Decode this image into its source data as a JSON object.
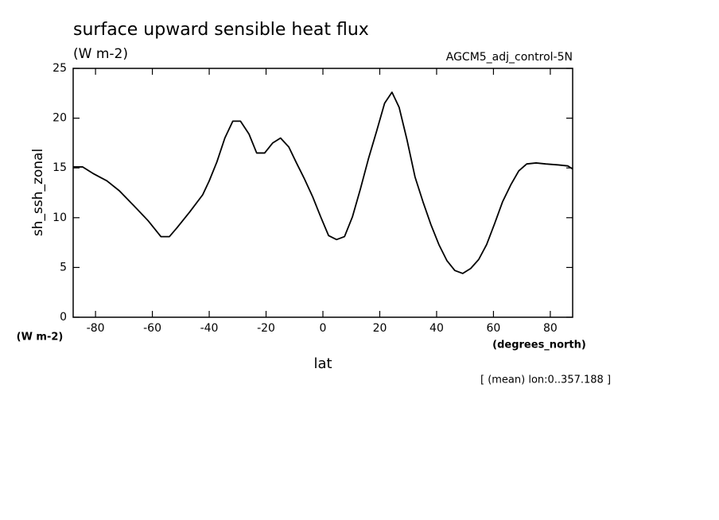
{
  "chart_data": {
    "type": "line",
    "title": "surface upward sensible heat flux",
    "subtitle": "(W m-2)",
    "run_label": "AGCM5_adj_control-5N",
    "ylabel": "sh_ssh_zonal",
    "y_units": "(W m-2)",
    "x_units": "(degrees_north)",
    "xlabel": "lat",
    "footnote": "[ (mean) lon:0..357.188 ]",
    "xlim": [
      -87.86,
      87.86
    ],
    "ylim": [
      0,
      25
    ],
    "xticks": [
      -80,
      -60,
      -40,
      -20,
      0,
      20,
      40,
      60,
      80
    ],
    "yticks": [
      0,
      5,
      10,
      15,
      20,
      25
    ],
    "series": [
      {
        "color": "#000000",
        "x": [
          -87.86,
          -84.5,
          -80.6,
          -76,
          -71.6,
          -66.5,
          -61.5,
          -57,
          -54,
          -51.3,
          -46.8,
          -42.3,
          -40,
          -37.3,
          -34.5,
          -31.7,
          -29,
          -26,
          -23.3,
          -20.5,
          -17.7,
          -14.9,
          -12,
          -9.3,
          -6.5,
          -3.6,
          -0.8,
          2,
          4.8,
          7.6,
          10.4,
          13.2,
          16,
          18.9,
          21.7,
          24.3,
          26.8,
          29.6,
          32.4,
          35.2,
          38,
          40.8,
          43.6,
          46.4,
          49.2,
          52,
          54.8,
          57.6,
          60.4,
          63.2,
          66.1,
          68.9,
          71.7,
          75,
          78.4,
          82.9,
          86.2,
          87.86
        ],
        "values": [
          15.1,
          15.1,
          14.4,
          13.7,
          12.7,
          11.2,
          9.7,
          8.1,
          8.1,
          9.0,
          10.6,
          12.3,
          13.7,
          15.6,
          18.0,
          19.7,
          19.7,
          18.4,
          16.5,
          16.5,
          17.5,
          18.0,
          17.1,
          15.5,
          13.9,
          12.1,
          10.1,
          8.2,
          7.8,
          8.1,
          10.1,
          12.9,
          15.9,
          18.7,
          21.5,
          22.6,
          21.1,
          17.8,
          14.1,
          11.6,
          9.3,
          7.3,
          5.7,
          4.7,
          4.4,
          4.9,
          5.8,
          7.3,
          9.4,
          11.6,
          13.3,
          14.7,
          15.4,
          15.5,
          15.4,
          15.3,
          15.2,
          14.9
        ]
      }
    ]
  }
}
